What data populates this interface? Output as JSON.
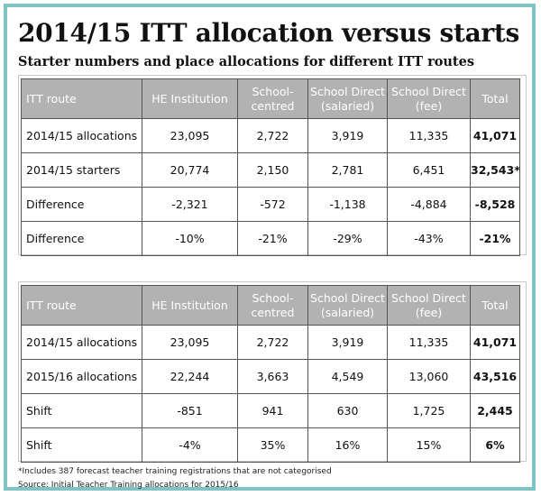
{
  "title": "2014/15 ITT allocation versus starts",
  "subtitle": "Starter numbers and place allocations for different ITT routes",
  "table1": {
    "headers": [
      "ITT route",
      "HE Institution",
      "School-\ncentred",
      "School Direct\n(salaried)",
      "School Direct\n(fee)",
      "Total"
    ],
    "rows": [
      [
        "2014/15 allocations",
        "23,095",
        "2,722",
        "3,919",
        "11,335",
        "41,071"
      ],
      [
        "2014/15 starters",
        "20,774",
        "2,150",
        "2,781",
        "6,451",
        "32,543*"
      ],
      [
        "Difference",
        "-2,321",
        "-572",
        "-1,138",
        "-4,884",
        "-8,528"
      ],
      [
        "Difference",
        "-10%",
        "-21%",
        "-29%",
        "-43%",
        "-21%"
      ]
    ]
  },
  "table2": {
    "headers": [
      "ITT route",
      "HE Institution",
      "School-\ncentred",
      "School Direct\n(salaried)",
      "School Direct\n(fee)",
      "Total"
    ],
    "rows": [
      [
        "2014/15 allocations",
        "23,095",
        "2,722",
        "3,919",
        "11,335",
        "41,071"
      ],
      [
        "2015/16 allocations",
        "22,244",
        "3,663",
        "4,549",
        "13,060",
        "43,516"
      ],
      [
        "Shift",
        "-851",
        "941",
        "630",
        "1,725",
        "2,445"
      ],
      [
        "Shift",
        "-4%",
        "35%",
        "16%",
        "15%",
        "6%"
      ]
    ]
  },
  "footnote": "*Includes 387 forecast teacher training registrations that are not categorised",
  "source": "Source: Initial Teacher Training allocations for 2015/16"
}
